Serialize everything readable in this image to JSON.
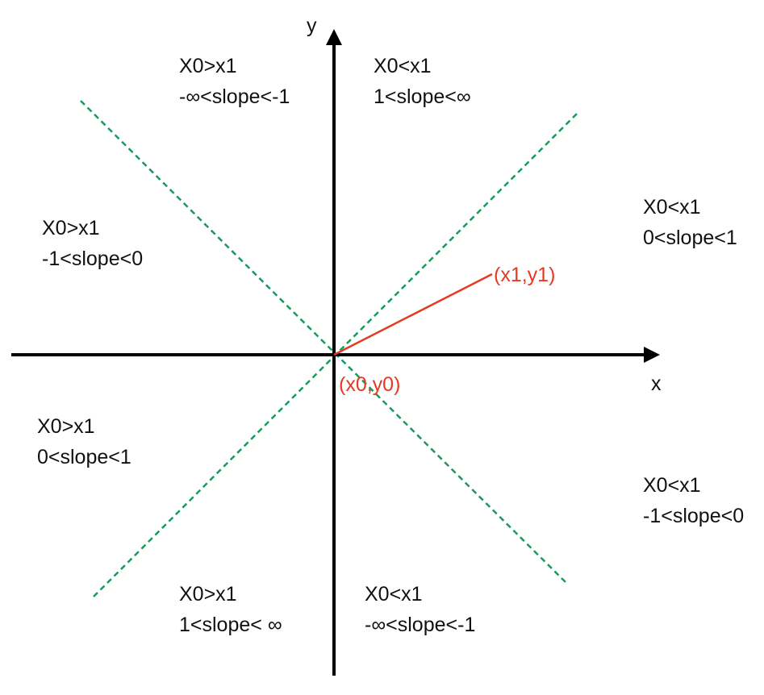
{
  "colors": {
    "axis": "#000000",
    "dashed_line": "#1a9a5a",
    "example_line": "#e53a24",
    "example_text": "#e53a24",
    "text": "#111111"
  },
  "axes": {
    "x_label": "x",
    "y_label": "y"
  },
  "example_line": {
    "start_label": "(x0,y0)",
    "end_label": "(x1,y1)"
  },
  "regions": [
    {
      "id": "top-left",
      "line1": "X0>x1",
      "line2": "-∞<slope<-1"
    },
    {
      "id": "top-right",
      "line1": "X0<x1",
      "line2": "1<slope<∞"
    },
    {
      "id": "upper-left",
      "line1": "X0>x1",
      "line2": "-1<slope<0"
    },
    {
      "id": "upper-right",
      "line1": "X0<x1",
      "line2": "0<slope<1"
    },
    {
      "id": "lower-left",
      "line1": "X0>x1",
      "line2": "0<slope<1"
    },
    {
      "id": "lower-right",
      "line1": "X0<x1",
      "line2": "-1<slope<0"
    },
    {
      "id": "bottom-left",
      "line1": "X0>x1",
      "line2": "1<slope< ∞"
    },
    {
      "id": "bottom-right",
      "line1": "X0<x1",
      "line2": "-∞<slope<-1"
    }
  ]
}
